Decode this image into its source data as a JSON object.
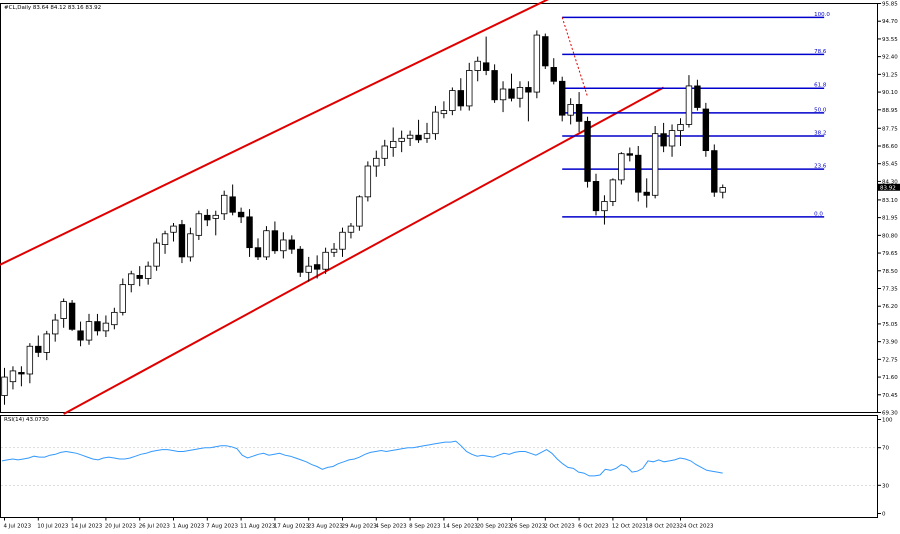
{
  "title_text": "#CL,Daily  83.64 84.12 83.16 83.92",
  "rsi_label": "RSI(14) 43.0730",
  "price_label": "83.92",
  "chart_data": [
    {
      "type": "candlestick",
      "symbol": "#CL",
      "timeframe": "Daily",
      "ohlc_header": {
        "open": 83.64,
        "high": 84.12,
        "low": 83.16,
        "close": 83.92
      },
      "ylim": [
        69.3,
        95.85
      ],
      "yticks": [
        95.85,
        94.7,
        93.55,
        92.4,
        91.25,
        90.1,
        88.95,
        87.75,
        86.6,
        85.45,
        84.3,
        83.1,
        81.95,
        80.8,
        79.65,
        78.5,
        77.35,
        76.2,
        75.05,
        73.9,
        72.75,
        71.6,
        70.45,
        69.3
      ],
      "xlabels": [
        {
          "label": "4 Jul 2023",
          "i": 0
        },
        {
          "label": "10 Jul 2023",
          "i": 4
        },
        {
          "label": "14 Jul 2023",
          "i": 8
        },
        {
          "label": "20 Jul 2023",
          "i": 12
        },
        {
          "label": "26 Jul 2023",
          "i": 16
        },
        {
          "label": "1 Aug 2023",
          "i": 20
        },
        {
          "label": "7 Aug 2023",
          "i": 24
        },
        {
          "label": "11 Aug 2023",
          "i": 28
        },
        {
          "label": "17 Aug 2023",
          "i": 32
        },
        {
          "label": "23 Aug 2023",
          "i": 36
        },
        {
          "label": "29 Aug 2023",
          "i": 40
        },
        {
          "label": "4 Sep 2023",
          "i": 44
        },
        {
          "label": "8 Sep 2023",
          "i": 48
        },
        {
          "label": "14 Sep 2023",
          "i": 52
        },
        {
          "label": "20 Sep 2023",
          "i": 56
        },
        {
          "label": "26 Sep 2023",
          "i": 60
        },
        {
          "label": "2 Oct 2023",
          "i": 64
        },
        {
          "label": "6 Oct 2023",
          "i": 68
        },
        {
          "label": "12 Oct 2023",
          "i": 72
        },
        {
          "label": "18 Oct 2023",
          "i": 76
        },
        {
          "label": "24 Oct 2023",
          "i": 80
        }
      ],
      "candles": [
        {
          "o": 70.4,
          "h": 72.2,
          "l": 69.8,
          "c": 71.6
        },
        {
          "o": 71.3,
          "h": 72.3,
          "l": 70.8,
          "c": 72.0
        },
        {
          "o": 71.9,
          "h": 72.3,
          "l": 71.0,
          "c": 71.8
        },
        {
          "o": 71.8,
          "h": 73.8,
          "l": 71.2,
          "c": 73.6
        },
        {
          "o": 73.6,
          "h": 74.3,
          "l": 72.9,
          "c": 73.2
        },
        {
          "o": 73.2,
          "h": 74.6,
          "l": 72.7,
          "c": 74.4
        },
        {
          "o": 74.4,
          "h": 75.7,
          "l": 73.9,
          "c": 75.3
        },
        {
          "o": 75.4,
          "h": 76.7,
          "l": 74.8,
          "c": 76.5
        },
        {
          "o": 76.4,
          "h": 76.6,
          "l": 74.6,
          "c": 74.7
        },
        {
          "o": 74.6,
          "h": 75.2,
          "l": 73.6,
          "c": 74.0
        },
        {
          "o": 74.0,
          "h": 75.7,
          "l": 73.7,
          "c": 75.2
        },
        {
          "o": 75.2,
          "h": 75.7,
          "l": 74.3,
          "c": 74.6
        },
        {
          "o": 74.6,
          "h": 75.6,
          "l": 74.2,
          "c": 75.1
        },
        {
          "o": 75.0,
          "h": 76.1,
          "l": 74.7,
          "c": 75.8
        },
        {
          "o": 75.8,
          "h": 78.0,
          "l": 75.6,
          "c": 77.6
        },
        {
          "o": 77.6,
          "h": 78.5,
          "l": 77.1,
          "c": 78.3
        },
        {
          "o": 78.2,
          "h": 78.8,
          "l": 77.5,
          "c": 78.0
        },
        {
          "o": 78.0,
          "h": 79.1,
          "l": 77.6,
          "c": 78.8
        },
        {
          "o": 78.8,
          "h": 80.6,
          "l": 78.5,
          "c": 80.3
        },
        {
          "o": 80.2,
          "h": 81.1,
          "l": 79.6,
          "c": 80.9
        },
        {
          "o": 81.0,
          "h": 81.6,
          "l": 80.4,
          "c": 81.4
        },
        {
          "o": 81.5,
          "h": 81.8,
          "l": 79.0,
          "c": 79.4
        },
        {
          "o": 79.4,
          "h": 81.3,
          "l": 79.1,
          "c": 80.9
        },
        {
          "o": 80.8,
          "h": 82.4,
          "l": 80.5,
          "c": 82.2
        },
        {
          "o": 82.1,
          "h": 82.5,
          "l": 81.4,
          "c": 81.8
        },
        {
          "o": 81.9,
          "h": 82.4,
          "l": 80.8,
          "c": 82.1
        },
        {
          "o": 82.2,
          "h": 83.7,
          "l": 81.8,
          "c": 83.4
        },
        {
          "o": 83.3,
          "h": 84.1,
          "l": 82.1,
          "c": 82.3
        },
        {
          "o": 82.3,
          "h": 82.6,
          "l": 81.6,
          "c": 82.0
        },
        {
          "o": 82.0,
          "h": 82.5,
          "l": 79.4,
          "c": 80.0
        },
        {
          "o": 80.0,
          "h": 80.6,
          "l": 79.2,
          "c": 79.4
        },
        {
          "o": 79.4,
          "h": 81.4,
          "l": 79.2,
          "c": 81.1
        },
        {
          "o": 81.1,
          "h": 81.7,
          "l": 79.6,
          "c": 79.8
        },
        {
          "o": 79.8,
          "h": 81.0,
          "l": 79.3,
          "c": 80.5
        },
        {
          "o": 80.5,
          "h": 80.8,
          "l": 79.6,
          "c": 79.9
        },
        {
          "o": 79.9,
          "h": 80.1,
          "l": 78.1,
          "c": 78.4
        },
        {
          "o": 78.4,
          "h": 79.4,
          "l": 77.8,
          "c": 78.8
        },
        {
          "o": 78.9,
          "h": 79.5,
          "l": 78.0,
          "c": 78.6
        },
        {
          "o": 78.6,
          "h": 80.0,
          "l": 78.3,
          "c": 79.7
        },
        {
          "o": 79.7,
          "h": 80.3,
          "l": 79.4,
          "c": 79.9
        },
        {
          "o": 79.9,
          "h": 81.3,
          "l": 79.4,
          "c": 81.0
        },
        {
          "o": 81.0,
          "h": 81.6,
          "l": 80.6,
          "c": 81.4
        },
        {
          "o": 81.4,
          "h": 83.4,
          "l": 81.1,
          "c": 83.3
        },
        {
          "o": 83.3,
          "h": 85.6,
          "l": 83.0,
          "c": 85.3
        },
        {
          "o": 85.3,
          "h": 86.3,
          "l": 84.6,
          "c": 85.8
        },
        {
          "o": 85.8,
          "h": 87.0,
          "l": 85.3,
          "c": 86.6
        },
        {
          "o": 86.5,
          "h": 87.8,
          "l": 85.9,
          "c": 86.9
        },
        {
          "o": 86.9,
          "h": 87.6,
          "l": 86.2,
          "c": 87.1
        },
        {
          "o": 87.1,
          "h": 87.6,
          "l": 86.6,
          "c": 87.3
        },
        {
          "o": 87.3,
          "h": 88.3,
          "l": 86.8,
          "c": 87.0
        },
        {
          "o": 87.1,
          "h": 88.1,
          "l": 86.8,
          "c": 87.4
        },
        {
          "o": 87.4,
          "h": 89.2,
          "l": 87.0,
          "c": 88.8
        },
        {
          "o": 88.7,
          "h": 89.5,
          "l": 88.4,
          "c": 88.9
        },
        {
          "o": 88.9,
          "h": 90.4,
          "l": 88.6,
          "c": 90.2
        },
        {
          "o": 90.2,
          "h": 91.0,
          "l": 88.9,
          "c": 89.2
        },
        {
          "o": 89.2,
          "h": 92.0,
          "l": 88.9,
          "c": 91.5
        },
        {
          "o": 91.5,
          "h": 92.4,
          "l": 90.8,
          "c": 92.1
        },
        {
          "o": 92.0,
          "h": 93.7,
          "l": 91.2,
          "c": 91.5
        },
        {
          "o": 91.5,
          "h": 91.9,
          "l": 89.4,
          "c": 89.6
        },
        {
          "o": 89.6,
          "h": 90.8,
          "l": 88.8,
          "c": 90.3
        },
        {
          "o": 90.3,
          "h": 91.3,
          "l": 89.5,
          "c": 89.7
        },
        {
          "o": 89.7,
          "h": 90.8,
          "l": 89.1,
          "c": 90.4
        },
        {
          "o": 90.4,
          "h": 90.8,
          "l": 88.2,
          "c": 90.1
        },
        {
          "o": 90.1,
          "h": 94.1,
          "l": 89.7,
          "c": 93.8
        },
        {
          "o": 93.7,
          "h": 93.9,
          "l": 91.6,
          "c": 91.8
        },
        {
          "o": 91.7,
          "h": 92.3,
          "l": 90.6,
          "c": 90.8
        },
        {
          "o": 90.8,
          "h": 91.1,
          "l": 88.2,
          "c": 88.6
        },
        {
          "o": 88.6,
          "h": 89.7,
          "l": 88.0,
          "c": 89.3
        },
        {
          "o": 89.3,
          "h": 90.1,
          "l": 87.5,
          "c": 88.2
        },
        {
          "o": 88.2,
          "h": 88.5,
          "l": 83.9,
          "c": 84.3
        },
        {
          "o": 84.3,
          "h": 84.8,
          "l": 82.1,
          "c": 82.4
        },
        {
          "o": 82.4,
          "h": 83.4,
          "l": 81.5,
          "c": 83.0
        },
        {
          "o": 83.0,
          "h": 84.5,
          "l": 82.7,
          "c": 84.4
        },
        {
          "o": 84.4,
          "h": 86.2,
          "l": 84.1,
          "c": 86.1
        },
        {
          "o": 86.1,
          "h": 86.5,
          "l": 85.6,
          "c": 86.0
        },
        {
          "o": 86.0,
          "h": 86.6,
          "l": 83.0,
          "c": 83.6
        },
        {
          "o": 83.6,
          "h": 84.5,
          "l": 82.6,
          "c": 83.4
        },
        {
          "o": 83.4,
          "h": 87.9,
          "l": 83.2,
          "c": 87.4
        },
        {
          "o": 87.4,
          "h": 88.1,
          "l": 86.2,
          "c": 86.6
        },
        {
          "o": 86.6,
          "h": 88.0,
          "l": 85.9,
          "c": 87.6
        },
        {
          "o": 87.6,
          "h": 88.4,
          "l": 86.6,
          "c": 88.0
        },
        {
          "o": 88.0,
          "h": 91.2,
          "l": 87.8,
          "c": 90.5
        },
        {
          "o": 90.5,
          "h": 90.9,
          "l": 88.9,
          "c": 89.1
        },
        {
          "o": 89.0,
          "h": 89.4,
          "l": 85.9,
          "c": 86.3
        },
        {
          "o": 86.3,
          "h": 86.7,
          "l": 83.3,
          "c": 83.6
        },
        {
          "o": 83.6,
          "h": 84.1,
          "l": 83.2,
          "c": 83.9
        }
      ],
      "channel": {
        "color": "#e00000",
        "upper": [
          {
            "i": -2,
            "price": 78.5
          },
          {
            "i": 65,
            "price": 96.3
          }
        ],
        "lower": [
          {
            "i": 7,
            "price": 69.2
          },
          {
            "i": 78,
            "price": 90.4
          }
        ]
      },
      "fibonacci": {
        "color": "#0000cc",
        "start_i": 66,
        "end_i": 97,
        "levels": [
          {
            "label": "100.0",
            "price": 94.95
          },
          {
            "label": "78.6",
            "price": 92.55
          },
          {
            "label": "61.8",
            "price": 90.35
          },
          {
            "label": "50.0",
            "price": 88.75
          },
          {
            "label": "38.2",
            "price": 87.25
          },
          {
            "label": "23.6",
            "price": 85.1
          },
          {
            "label": "0.0",
            "price": 82.0
          }
        ],
        "anchor_line": {
          "i_from": 66,
          "price_from": 94.95,
          "i_to": 69,
          "price_to": 89.8,
          "color": "#e00000"
        }
      },
      "current_price": 83.92
    },
    {
      "type": "line",
      "name": "RSI(14)",
      "current_value": 43.073,
      "ylim": [
        0,
        100
      ],
      "yticks": [
        100,
        70,
        30,
        0
      ],
      "color": "#3399ff",
      "values": [
        56,
        57,
        58,
        57,
        58,
        59,
        61,
        60,
        60,
        62,
        63,
        65,
        66,
        65,
        64,
        62,
        60,
        58,
        57,
        59,
        60,
        59,
        58,
        58,
        59,
        61,
        63,
        64,
        66,
        67,
        68,
        68,
        67,
        66,
        66,
        67,
        68,
        69,
        70,
        70,
        71,
        72,
        72,
        71,
        69,
        62,
        59,
        61,
        63,
        64,
        62,
        63,
        64,
        62,
        61,
        59,
        57,
        55,
        52,
        50,
        47,
        49,
        50,
        53,
        55,
        57,
        58,
        60,
        63,
        65,
        66,
        67,
        66,
        67,
        68,
        69,
        70,
        70,
        71,
        72,
        73,
        74,
        75,
        76,
        76,
        77,
        72,
        66,
        63,
        61,
        62,
        61,
        60,
        62,
        64,
        63,
        65,
        66,
        66,
        64,
        62,
        65,
        68,
        64,
        58,
        53,
        49,
        48,
        44,
        43,
        40,
        40,
        41,
        47,
        46,
        48,
        52,
        50,
        44,
        45,
        48,
        56,
        55,
        57,
        55,
        56,
        57,
        59,
        58,
        56,
        52,
        49,
        46,
        45,
        44,
        43
      ]
    }
  ]
}
